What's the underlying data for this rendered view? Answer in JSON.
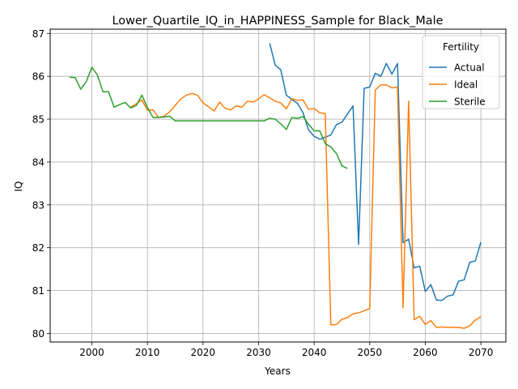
{
  "chart_data": {
    "type": "line",
    "title": "Lower_Quartile_IQ_in_HAPPINESS_Sample for Black_Male",
    "xlabel": "Years",
    "ylabel": "IQ",
    "xlim": [
      1992.5,
      2074.5
    ],
    "ylim": [
      79.8,
      87.1
    ],
    "xticks": [
      2000,
      2010,
      2020,
      2030,
      2040,
      2050,
      2060,
      2070
    ],
    "yticks": [
      80,
      81,
      82,
      83,
      84,
      85,
      86,
      87
    ],
    "grid": true,
    "legend": {
      "title": "Fertility",
      "position": "top-right"
    },
    "series": [
      {
        "name": "Actual",
        "color": "#1f77b4",
        "x": [
          2032,
          2033,
          2034,
          2035,
          2036,
          2037,
          2038,
          2039,
          2040,
          2041,
          2042,
          2043,
          2044,
          2045,
          2046,
          2047,
          2048,
          2049,
          2050,
          2051,
          2052,
          2053,
          2054,
          2055,
          2056,
          2057,
          2058,
          2059,
          2060,
          2061,
          2062,
          2063,
          2064,
          2065,
          2066,
          2067,
          2068,
          2069,
          2070
        ],
        "values": [
          86.77,
          86.26,
          86.15,
          85.56,
          85.46,
          85.37,
          85.15,
          84.75,
          84.6,
          84.53,
          84.58,
          84.63,
          84.87,
          84.93,
          85.12,
          85.31,
          82.08,
          85.72,
          85.75,
          86.07,
          86.0,
          86.3,
          86.05,
          86.3,
          82.12,
          82.2,
          81.53,
          81.57,
          80.98,
          81.14,
          80.78,
          80.77,
          80.87,
          80.9,
          81.22,
          81.25,
          81.66,
          81.69,
          82.13
        ]
      },
      {
        "name": "Ideal",
        "color": "#ff7f0e",
        "x": [
          2007,
          2008,
          2009,
          2010,
          2011,
          2012,
          2013,
          2014,
          2015,
          2016,
          2017,
          2018,
          2019,
          2020,
          2021,
          2022,
          2023,
          2024,
          2025,
          2026,
          2027,
          2028,
          2029,
          2030,
          2031,
          2032,
          2033,
          2034,
          2035,
          2036,
          2037,
          2038,
          2039,
          2040,
          2041,
          2042,
          2043,
          2044,
          2045,
          2046,
          2047,
          2048,
          2049,
          2050,
          2051,
          2052,
          2053,
          2054,
          2055,
          2056,
          2057,
          2058,
          2059,
          2060,
          2061,
          2062,
          2063,
          2064,
          2065,
          2066,
          2067,
          2068,
          2069,
          2070
        ],
        "values": [
          85.28,
          85.36,
          85.45,
          85.21,
          85.22,
          85.04,
          85.07,
          85.17,
          85.32,
          85.47,
          85.56,
          85.6,
          85.56,
          85.38,
          85.29,
          85.19,
          85.4,
          85.25,
          85.22,
          85.31,
          85.28,
          85.42,
          85.4,
          85.47,
          85.57,
          85.5,
          85.42,
          85.38,
          85.24,
          85.48,
          85.44,
          85.45,
          85.23,
          85.25,
          85.15,
          85.13,
          80.2,
          80.21,
          80.33,
          80.37,
          80.46,
          80.48,
          80.53,
          80.58,
          85.68,
          85.8,
          85.8,
          85.73,
          85.75,
          80.6,
          85.42,
          80.32,
          80.4,
          80.21,
          80.3,
          80.14,
          80.15,
          80.14,
          80.14,
          80.14,
          80.12,
          80.18,
          80.31,
          80.39
        ]
      },
      {
        "name": "Sterile",
        "color": "#2ca02c",
        "x": [
          1996,
          1997,
          1998,
          1999,
          2000,
          2001,
          2002,
          2003,
          2004,
          2005,
          2006,
          2007,
          2008,
          2009,
          2010,
          2011,
          2012,
          2013,
          2014,
          2015,
          2016,
          2017,
          2018,
          2019,
          2020,
          2021,
          2022,
          2023,
          2024,
          2025,
          2026,
          2027,
          2028,
          2029,
          2030,
          2031,
          2032,
          2033,
          2034,
          2035,
          2036,
          2037,
          2038,
          2039,
          2040,
          2041,
          2042,
          2043,
          2044,
          2045,
          2046
        ],
        "values": [
          85.98,
          85.97,
          85.7,
          85.88,
          86.21,
          86.03,
          85.64,
          85.64,
          85.28,
          85.34,
          85.39,
          85.26,
          85.32,
          85.56,
          85.27,
          85.04,
          85.04,
          85.05,
          85.07,
          84.96,
          84.96,
          84.96,
          84.96,
          84.96,
          84.96,
          84.96,
          84.96,
          84.96,
          84.96,
          84.96,
          84.96,
          84.96,
          84.96,
          84.96,
          84.96,
          84.96,
          85.02,
          85.0,
          84.89,
          84.76,
          85.04,
          85.02,
          85.06,
          84.88,
          84.73,
          84.73,
          84.43,
          84.35,
          84.2,
          83.91,
          83.85
        ]
      }
    ]
  }
}
